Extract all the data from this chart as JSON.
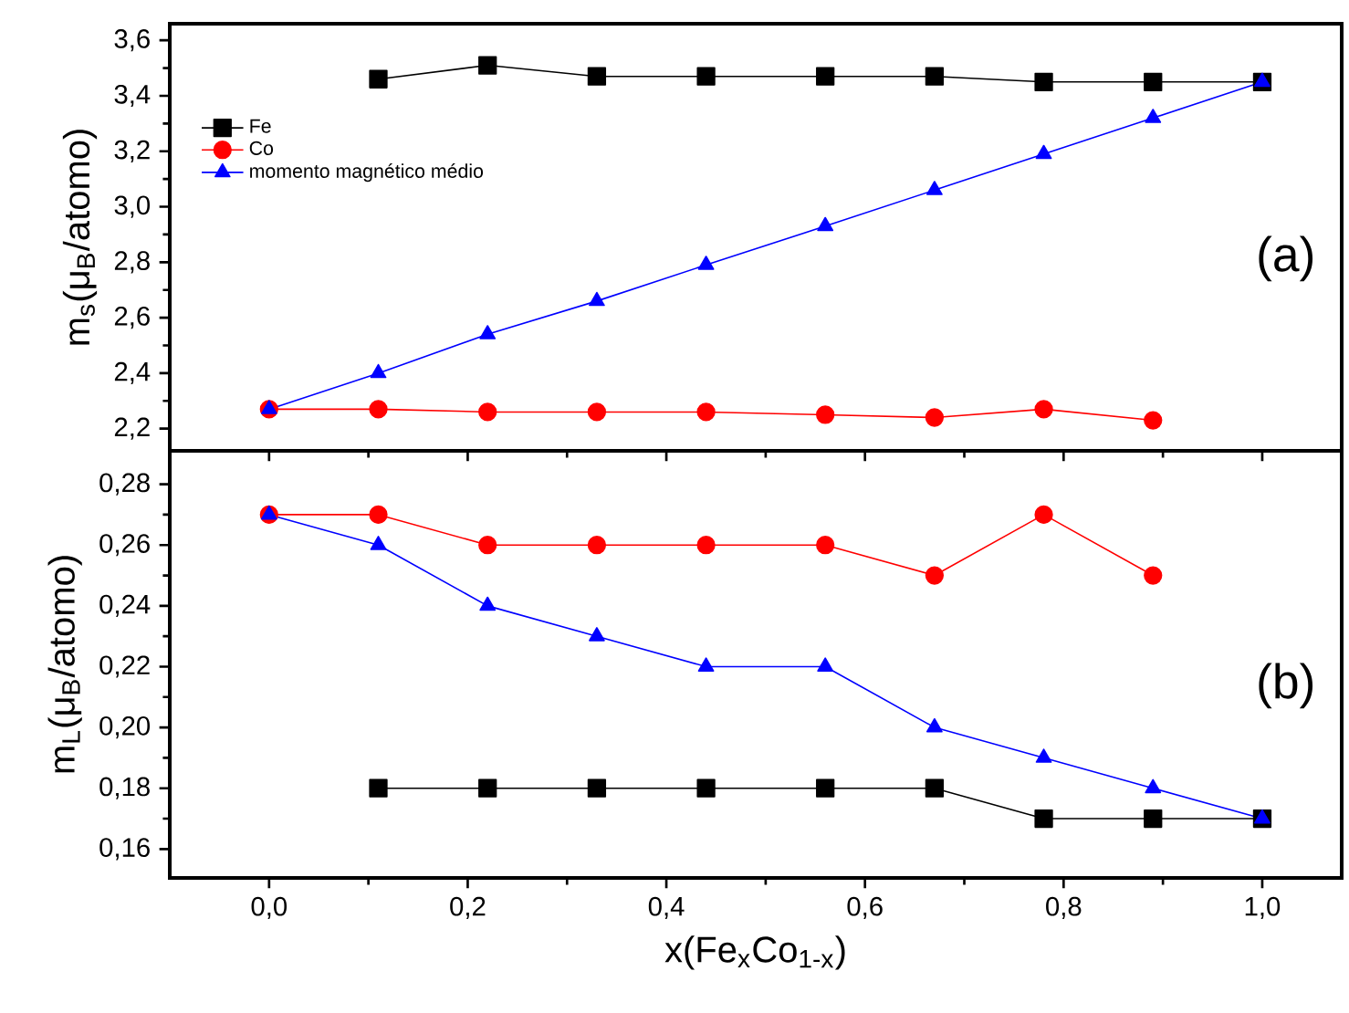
{
  "chart_data": [
    {
      "type": "line",
      "ylabel": "m$_{s}$(μ$_{B}$/atomo)",
      "annotations": [
        "(a)"
      ],
      "legend": "top left",
      "tick_labels": "y",
      "x": [
        0,
        0.11,
        0.22,
        0.33,
        0.44,
        0.56,
        0.67,
        0.78,
        0.89,
        1.0
      ],
      "xlim": [
        -0.1,
        1.08
      ],
      "ylim": [
        2.12,
        3.66
      ],
      "xticks": [
        {
          "value": 0,
          "label": null
        },
        {
          "value": 0.2,
          "label": null
        },
        {
          "value": 0.4,
          "label": null
        },
        {
          "value": 0.6,
          "label": null
        },
        {
          "value": 0.8,
          "label": null
        },
        {
          "value": 1.0,
          "label": null
        }
      ],
      "yticks": [
        {
          "value": 2.2,
          "label": "2,2"
        },
        {
          "value": 2.4,
          "label": "2,4"
        },
        {
          "value": 2.6,
          "label": "2,6"
        },
        {
          "value": 2.8,
          "label": "2,8"
        },
        {
          "value": 3.0,
          "label": "3,0"
        },
        {
          "value": 3.2,
          "label": "3,2"
        },
        {
          "value": 3.4,
          "label": "3,4"
        },
        {
          "value": 3.6,
          "label": "3,6"
        }
      ],
      "series": [
        {
          "name": "Fe",
          "color": "#000000",
          "marker": "square",
          "values": [
            null,
            3.46,
            3.51,
            3.47,
            3.47,
            3.47,
            3.47,
            3.45,
            3.45,
            3.45
          ]
        },
        {
          "name": "Co",
          "color": "#ff0000",
          "marker": "circle",
          "values": [
            2.27,
            2.27,
            2.26,
            2.26,
            2.26,
            2.25,
            2.24,
            2.27,
            2.23,
            null
          ]
        },
        {
          "name": "momento magnético médio",
          "color": "#0000ff",
          "marker": "triangle",
          "values": [
            2.27,
            2.4,
            2.54,
            2.66,
            2.79,
            2.93,
            3.06,
            3.19,
            3.32,
            3.45
          ]
        }
      ]
    },
    {
      "type": "line",
      "xlabel": "x(Fe$_{x}$Co$_{1-x}$)",
      "ylabel": "m$_{L}$(μ$_{B}$/atomo)",
      "annotations": [
        "(b)"
      ],
      "x": [
        0,
        0.11,
        0.22,
        0.33,
        0.44,
        0.56,
        0.67,
        0.78,
        0.89,
        1.0
      ],
      "xlim": [
        -0.1,
        1.08
      ],
      "ylim": [
        0.1505,
        0.291
      ],
      "xticks": [
        {
          "value": 0,
          "label": "0,0"
        },
        {
          "value": 0.2,
          "label": "0,2"
        },
        {
          "value": 0.4,
          "label": "0,4"
        },
        {
          "value": 0.6,
          "label": "0,6"
        },
        {
          "value": 0.8,
          "label": "0,8"
        },
        {
          "value": 1.0,
          "label": "1,0"
        }
      ],
      "yticks": [
        {
          "value": 0.16,
          "label": "0,16"
        },
        {
          "value": 0.18,
          "label": "0,18"
        },
        {
          "value": 0.2,
          "label": "0,20"
        },
        {
          "value": 0.22,
          "label": "0,22"
        },
        {
          "value": 0.24,
          "label": "0,24"
        },
        {
          "value": 0.26,
          "label": "0,26"
        },
        {
          "value": 0.28,
          "label": "0,28"
        }
      ],
      "series": [
        {
          "color": "#000000",
          "marker": "square",
          "values": [
            null,
            0.18,
            0.18,
            0.18,
            0.18,
            0.18,
            0.18,
            0.17,
            0.17,
            0.17
          ]
        },
        {
          "color": "#ff0000",
          "marker": "circle",
          "values": [
            0.27,
            0.27,
            0.26,
            0.26,
            0.26,
            0.26,
            0.25,
            0.27,
            0.25,
            null
          ]
        },
        {
          "color": "#0000ff",
          "marker": "triangle",
          "values": [
            0.27,
            0.26,
            0.24,
            0.23,
            0.22,
            0.22,
            0.2,
            0.19,
            0.18,
            0.17
          ]
        }
      ]
    }
  ]
}
